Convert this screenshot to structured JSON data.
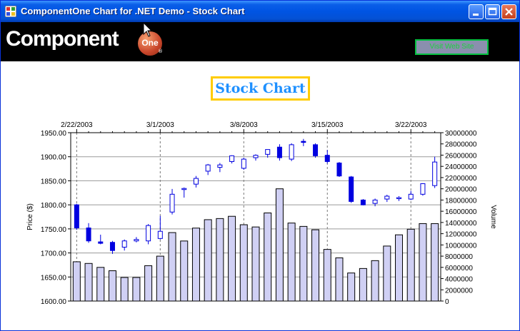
{
  "window": {
    "title": "ComponentOne Chart for .NET Demo - Stock Chart",
    "minimize_label": "",
    "maximize_label": "",
    "close_label": ""
  },
  "header": {
    "logo_text": "Component",
    "logo_badge": "One",
    "logo_reg": "®",
    "visit_button": "Visit Web Site"
  },
  "colors": {
    "title_bar": "#0054e3",
    "header_bg": "#000000",
    "title_color": "#1e90ff",
    "title_border": "#ffcc00",
    "candle_up": "#ffffff",
    "candle_down": "#0000e0",
    "volume_fill": "#d0d0f4"
  },
  "chart_data": {
    "type": "stock",
    "title": "Stock Chart",
    "top_axis_labels": [
      "2/22/2003",
      "3/1/2003",
      "3/8/2003",
      "3/15/2003",
      "3/22/2003"
    ],
    "ylabel": "Price ($)",
    "y2label": "Volume",
    "ylim": [
      1600,
      1950
    ],
    "y_ticks": [
      "1950.00",
      "1900.00",
      "1850.00",
      "1800.00",
      "1750.00",
      "1700.00",
      "1650.00",
      "1600.00"
    ],
    "y2lim": [
      0,
      30000000
    ],
    "y2_ticks": [
      "30000000",
      "28000000",
      "26000000",
      "24000000",
      "22000000",
      "20000000",
      "18000000",
      "16000000",
      "14000000",
      "12000000",
      "10000000",
      "8000000",
      "6000000",
      "4000000",
      "2000000",
      "0"
    ],
    "grid": true,
    "series": [
      {
        "name": "Price",
        "type": "candlestick",
        "ohlc": [
          [
            1800,
            1802,
            1748,
            1752
          ],
          [
            1752,
            1762,
            1721,
            1725
          ],
          [
            1723,
            1738,
            1718,
            1720
          ],
          [
            1722,
            1725,
            1698,
            1705
          ],
          [
            1712,
            1728,
            1705,
            1725
          ],
          [
            1725,
            1733,
            1722,
            1728
          ],
          [
            1725,
            1760,
            1718,
            1757
          ],
          [
            1730,
            1777,
            1728,
            1745
          ],
          [
            1785,
            1833,
            1780,
            1822
          ],
          [
            1832,
            1836,
            1815,
            1834
          ],
          [
            1843,
            1860,
            1836,
            1855
          ],
          [
            1870,
            1885,
            1862,
            1883
          ],
          [
            1878,
            1887,
            1868,
            1883
          ],
          [
            1890,
            1903,
            1886,
            1902
          ],
          [
            1876,
            1898,
            1873,
            1895
          ],
          [
            1898,
            1905,
            1892,
            1903
          ],
          [
            1905,
            1915,
            1898,
            1915
          ],
          [
            1920,
            1926,
            1892,
            1898
          ],
          [
            1895,
            1928,
            1891,
            1925
          ],
          [
            1932,
            1937,
            1922,
            1930
          ],
          [
            1925,
            1928,
            1898,
            1902
          ],
          [
            1903,
            1914,
            1886,
            1890
          ],
          [
            1887,
            1889,
            1858,
            1860
          ],
          [
            1858,
            1860,
            1804,
            1807
          ],
          [
            1810,
            1812,
            1799,
            1800
          ],
          [
            1803,
            1813,
            1797,
            1810
          ],
          [
            1812,
            1821,
            1806,
            1818
          ],
          [
            1815,
            1818,
            1808,
            1815
          ],
          [
            1812,
            1829,
            1810,
            1822
          ],
          [
            1822,
            1845,
            1819,
            1844
          ],
          [
            1840,
            1900,
            1835,
            1889
          ]
        ]
      },
      {
        "name": "Volume",
        "type": "bar",
        "values": [
          7000000,
          6700000,
          6000000,
          5400000,
          4200000,
          4200000,
          6300000,
          8000000,
          12200000,
          10700000,
          13000000,
          14500000,
          14700000,
          15100000,
          13600000,
          13200000,
          15700000,
          20000000,
          13900000,
          13300000,
          12700000,
          9200000,
          7700000,
          5000000,
          5800000,
          7200000,
          9800000,
          11800000,
          12800000,
          13800000,
          13800000
        ]
      }
    ]
  }
}
